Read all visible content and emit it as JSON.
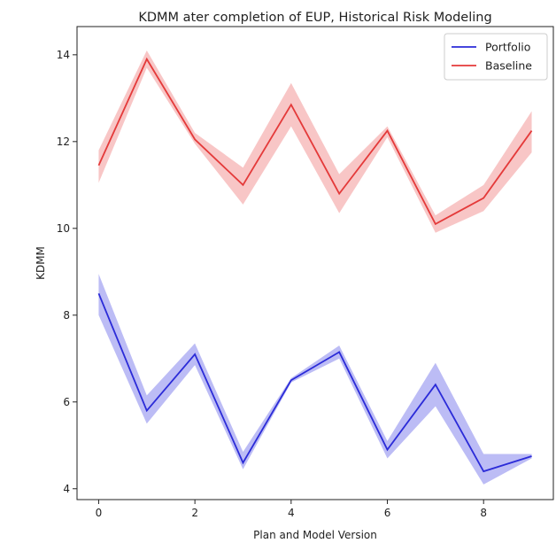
{
  "chart_data": {
    "type": "line",
    "title": "KDMM ater completion of EUP, Historical Risk Modeling",
    "xlabel": "Plan and Model Version",
    "ylabel": "KDMM",
    "x": [
      0,
      1,
      2,
      3,
      4,
      5,
      6,
      7,
      8,
      9
    ],
    "xlim": [
      -0.45,
      9.45
    ],
    "ylim": [
      3.75,
      14.65
    ],
    "x_ticks": [
      0,
      2,
      4,
      6,
      8
    ],
    "y_ticks": [
      4,
      6,
      8,
      10,
      12,
      14
    ],
    "grid": false,
    "legend_position": "top-right",
    "series": [
      {
        "name": "Portfolio",
        "color": "#2b2bd8",
        "band_color": "#8f8fee",
        "values": [
          8.5,
          5.8,
          7.1,
          4.6,
          6.5,
          7.15,
          4.9,
          6.4,
          4.4,
          4.75
        ],
        "lower": [
          8.0,
          5.5,
          6.85,
          4.45,
          6.45,
          7.0,
          4.7,
          5.9,
          4.1,
          4.7
        ],
        "upper": [
          8.95,
          6.15,
          7.35,
          4.85,
          6.55,
          7.3,
          5.1,
          6.9,
          4.8,
          4.8
        ]
      },
      {
        "name": "Baseline",
        "color": "#e43a3a",
        "band_color": "#f4a0a0",
        "values": [
          11.45,
          13.9,
          12.05,
          11.0,
          12.85,
          10.8,
          12.25,
          10.1,
          10.7,
          12.25
        ],
        "lower": [
          11.05,
          13.7,
          11.95,
          10.55,
          12.35,
          10.35,
          12.1,
          9.9,
          10.4,
          11.75
        ],
        "upper": [
          11.8,
          14.1,
          12.2,
          11.4,
          13.35,
          11.25,
          12.35,
          10.3,
          11.0,
          12.7
        ]
      }
    ]
  }
}
